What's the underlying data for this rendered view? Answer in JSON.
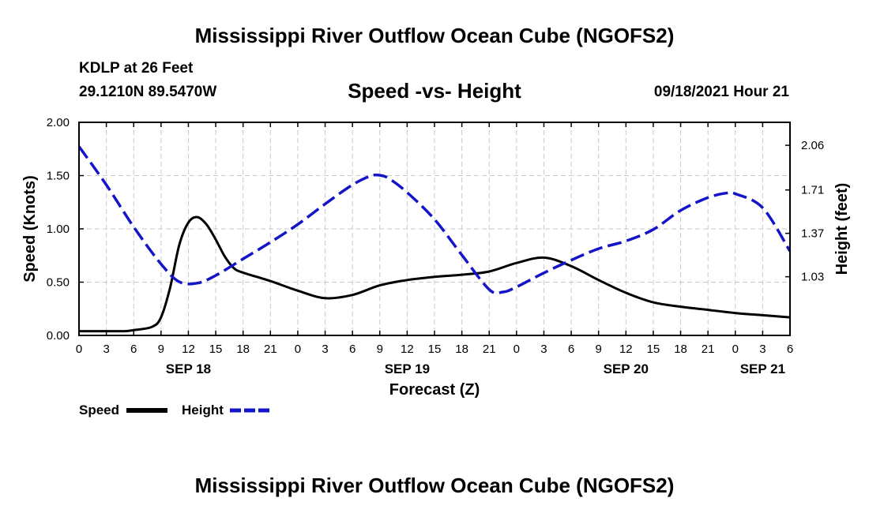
{
  "header": {
    "title": "Mississippi River Outflow Ocean Cube (NGOFS2)",
    "station": "KDLP at 26 Feet",
    "coords": "29.1210N  89.5470W",
    "subtitle": "Speed -vs- Height",
    "datetime": "09/18/2021 Hour 21"
  },
  "footer": {
    "title": "Mississippi River Outflow Ocean Cube (NGOFS2)"
  },
  "chart_data": {
    "type": "line",
    "title": "Speed -vs- Height",
    "xlabel": "Forecast (Z)",
    "ylabel": "Speed (Knots)",
    "y2label": "Height (feet)",
    "x_unit": "hours from SEP 18 00Z",
    "xlim": [
      0,
      78
    ],
    "ylim": [
      0,
      2.0
    ],
    "y2lim": [
      0.57,
      2.24
    ],
    "x_ticks": [
      0,
      3,
      6,
      9,
      12,
      15,
      18,
      21,
      24,
      27,
      30,
      33,
      36,
      39,
      42,
      45,
      48,
      51,
      54,
      57,
      60,
      63,
      66,
      69,
      72,
      75,
      78
    ],
    "x_tick_labels": [
      "0",
      "3",
      "6",
      "9",
      "12",
      "15",
      "18",
      "21",
      "0",
      "3",
      "6",
      "9",
      "12",
      "15",
      "18",
      "21",
      "0",
      "3",
      "6",
      "9",
      "12",
      "15",
      "18",
      "21",
      "0",
      "3",
      "6"
    ],
    "y_ticks": [
      0,
      0.5,
      1.0,
      1.5,
      2.0
    ],
    "y_tick_labels": [
      "0.00",
      "0.50",
      "1.00",
      "1.50",
      "2.00"
    ],
    "y2_ticks": [
      1.03,
      1.37,
      1.71,
      2.06
    ],
    "y2_tick_labels": [
      "1.03",
      "1.37",
      "1.71",
      "2.06"
    ],
    "date_labels": [
      {
        "label": "SEP 18",
        "x": 12
      },
      {
        "label": "SEP 19",
        "x": 36
      },
      {
        "label": "SEP 20",
        "x": 60
      },
      {
        "label": "SEP 21",
        "x": 75
      }
    ],
    "grid": true,
    "legend": {
      "position": "bottom-left",
      "entries": [
        "Speed",
        "Height"
      ]
    },
    "series": [
      {
        "name": "Speed",
        "axis": "left",
        "color": "#000000",
        "dash": "solid",
        "x": [
          0,
          3,
          5,
          6,
          8,
          9,
          10,
          11,
          12,
          13,
          14,
          15,
          16,
          17,
          18,
          21,
          24,
          27,
          30,
          33,
          36,
          39,
          42,
          45,
          48,
          51,
          54,
          57,
          60,
          63,
          66,
          69,
          72,
          75,
          78
        ],
        "values": [
          0.04,
          0.04,
          0.04,
          0.05,
          0.08,
          0.17,
          0.45,
          0.85,
          1.06,
          1.11,
          1.04,
          0.9,
          0.74,
          0.63,
          0.59,
          0.51,
          0.42,
          0.35,
          0.38,
          0.47,
          0.52,
          0.55,
          0.57,
          0.6,
          0.68,
          0.73,
          0.65,
          0.52,
          0.4,
          0.31,
          0.27,
          0.24,
          0.21,
          0.19,
          0.17
        ]
      },
      {
        "name": "Height",
        "axis": "right",
        "color": "#1414c8",
        "dash": "dashed",
        "x": [
          0,
          3,
          6,
          9,
          11,
          13,
          15,
          18,
          21,
          24,
          27,
          30,
          32,
          33,
          34,
          36,
          39,
          42,
          45,
          46.5,
          48,
          51,
          54,
          57,
          60,
          63,
          66,
          69,
          71,
          72,
          75,
          78
        ],
        "values": [
          2.05,
          1.75,
          1.42,
          1.13,
          0.99,
          0.98,
          1.04,
          1.17,
          1.3,
          1.44,
          1.6,
          1.75,
          1.82,
          1.825,
          1.8,
          1.69,
          1.48,
          1.2,
          0.93,
          0.91,
          0.95,
          1.06,
          1.16,
          1.25,
          1.31,
          1.4,
          1.55,
          1.65,
          1.685,
          1.68,
          1.57,
          1.23
        ]
      }
    ]
  }
}
